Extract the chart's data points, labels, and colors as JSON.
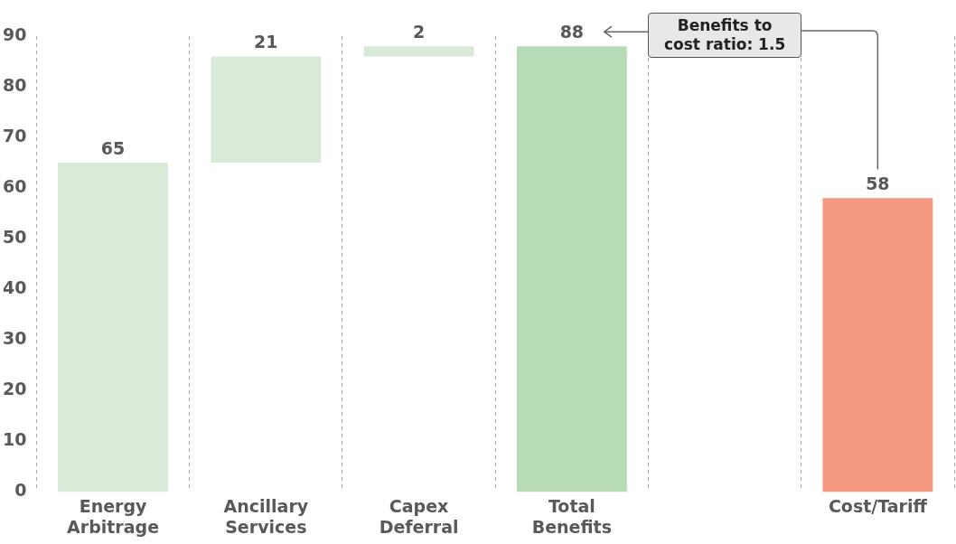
{
  "chart_data": {
    "type": "bar",
    "categories": [
      "Energy Arbitrage",
      "Ancillary Services",
      "Capex Deferral",
      "Total Benefits",
      null,
      "Cost/Tariff"
    ],
    "values": [
      65,
      21,
      2,
      88,
      null,
      58
    ],
    "base": [
      0,
      65,
      86,
      0,
      null,
      0
    ],
    "colors": [
      "#d9ead8",
      "#d9ead8",
      "#d9ead8",
      "#b7dbb5",
      null,
      "#f4997f"
    ],
    "ylim": [
      0,
      90
    ],
    "yticks": [
      0,
      10,
      20,
      30,
      40,
      50,
      60,
      70,
      80,
      90
    ],
    "grid": "x",
    "data_labels": true,
    "legend": false,
    "annotations": [
      "Benefits to cost ratio: 1.5"
    ]
  }
}
